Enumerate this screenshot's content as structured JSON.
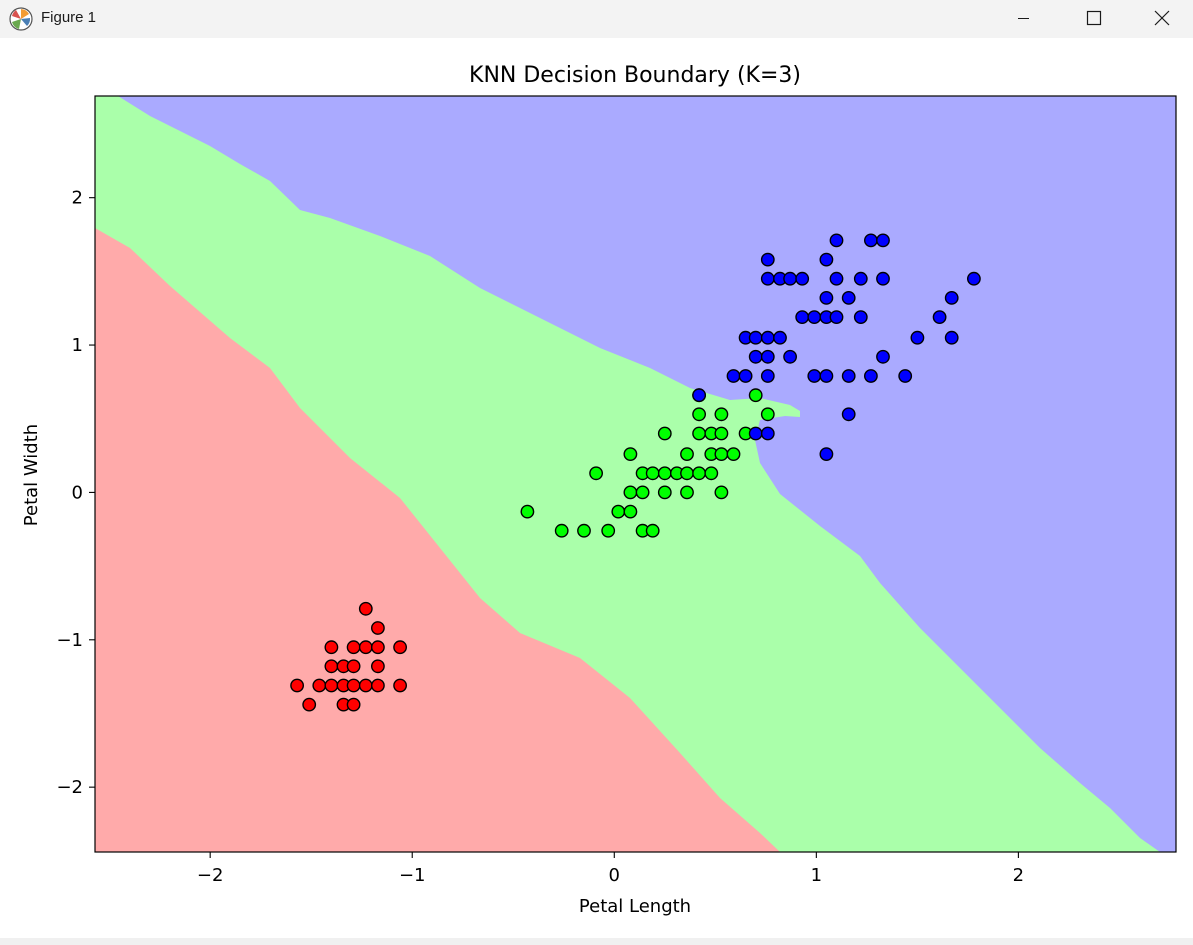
{
  "window": {
    "title": "Figure 1",
    "app_icon": "matplotlib-logo-icon",
    "controls": [
      "minimize-icon",
      "maximize-icon",
      "close-icon"
    ]
  },
  "chart_data": {
    "type": "scatter",
    "title": "KNN Decision Boundary (K=3)",
    "xlabel": "Petal Length",
    "ylabel": "Petal Width",
    "xlim": [
      -2.57,
      2.78
    ],
    "ylim": [
      -2.44,
      2.69
    ],
    "xticks": [
      -2,
      -1,
      0,
      1,
      2
    ],
    "yticks": [
      -2,
      -1,
      0,
      1,
      2
    ],
    "xtick_labels": [
      "−2",
      "−1",
      "0",
      "1",
      "2"
    ],
    "ytick_labels": [
      "−2",
      "−1",
      "0",
      "1",
      "2"
    ],
    "grid": false,
    "legend": "none",
    "background": "decision regions for 3 classes",
    "region_colors": {
      "red": "#ffaaaa",
      "green": "#aaffaa",
      "blue": "#aaaaff"
    },
    "series": [
      {
        "color": "#ff0000",
        "points": [
          [
            -1.23,
            -0.79
          ],
          [
            -1.17,
            -0.92
          ],
          [
            -1.4,
            -1.05
          ],
          [
            -1.29,
            -1.05
          ],
          [
            -1.23,
            -1.05
          ],
          [
            -1.17,
            -1.05
          ],
          [
            -1.06,
            -1.05
          ],
          [
            -1.4,
            -1.18
          ],
          [
            -1.34,
            -1.18
          ],
          [
            -1.29,
            -1.18
          ],
          [
            -1.17,
            -1.18
          ],
          [
            -1.57,
            -1.31
          ],
          [
            -1.46,
            -1.31
          ],
          [
            -1.4,
            -1.31
          ],
          [
            -1.34,
            -1.31
          ],
          [
            -1.29,
            -1.31
          ],
          [
            -1.23,
            -1.31
          ],
          [
            -1.17,
            -1.31
          ],
          [
            -1.06,
            -1.31
          ],
          [
            -1.51,
            -1.44
          ],
          [
            -1.34,
            -1.44
          ],
          [
            -1.29,
            -1.44
          ]
        ]
      },
      {
        "color": "#00ff00",
        "points": [
          [
            0.42,
            0.66
          ],
          [
            0.7,
            0.66
          ],
          [
            0.42,
            0.53
          ],
          [
            0.53,
            0.53
          ],
          [
            0.76,
            0.53
          ],
          [
            0.25,
            0.4
          ],
          [
            0.42,
            0.4
          ],
          [
            0.48,
            0.4
          ],
          [
            0.53,
            0.4
          ],
          [
            0.65,
            0.4
          ],
          [
            0.08,
            0.26
          ],
          [
            0.36,
            0.26
          ],
          [
            0.48,
            0.26
          ],
          [
            0.53,
            0.26
          ],
          [
            0.59,
            0.26
          ],
          [
            -0.09,
            0.13
          ],
          [
            0.14,
            0.13
          ],
          [
            0.19,
            0.13
          ],
          [
            0.25,
            0.13
          ],
          [
            0.31,
            0.13
          ],
          [
            0.36,
            0.13
          ],
          [
            0.42,
            0.13
          ],
          [
            0.48,
            0.13
          ],
          [
            0.08,
            0.0
          ],
          [
            0.14,
            0.0
          ],
          [
            0.25,
            0.0
          ],
          [
            0.36,
            0.0
          ],
          [
            0.53,
            0.0
          ],
          [
            -0.43,
            -0.13
          ],
          [
            0.02,
            -0.13
          ],
          [
            0.08,
            -0.13
          ],
          [
            -0.26,
            -0.26
          ],
          [
            -0.15,
            -0.26
          ],
          [
            -0.03,
            -0.26
          ],
          [
            0.14,
            -0.26
          ],
          [
            0.19,
            -0.26
          ]
        ]
      },
      {
        "color": "#0000ff",
        "points": [
          [
            1.1,
            1.71
          ],
          [
            1.27,
            1.71
          ],
          [
            1.33,
            1.71
          ],
          [
            0.76,
            1.58
          ],
          [
            1.05,
            1.58
          ],
          [
            0.76,
            1.45
          ],
          [
            0.82,
            1.45
          ],
          [
            0.87,
            1.45
          ],
          [
            0.93,
            1.45
          ],
          [
            1.1,
            1.45
          ],
          [
            1.22,
            1.45
          ],
          [
            1.33,
            1.45
          ],
          [
            1.78,
            1.45
          ],
          [
            1.05,
            1.32
          ],
          [
            1.16,
            1.32
          ],
          [
            1.67,
            1.32
          ],
          [
            0.93,
            1.19
          ],
          [
            0.99,
            1.19
          ],
          [
            1.05,
            1.19
          ],
          [
            1.1,
            1.19
          ],
          [
            1.22,
            1.19
          ],
          [
            1.61,
            1.19
          ],
          [
            0.65,
            1.05
          ],
          [
            0.7,
            1.05
          ],
          [
            0.76,
            1.05
          ],
          [
            0.82,
            1.05
          ],
          [
            1.5,
            1.05
          ],
          [
            1.67,
            1.05
          ],
          [
            0.7,
            0.92
          ],
          [
            0.76,
            0.92
          ],
          [
            0.87,
            0.92
          ],
          [
            1.33,
            0.92
          ],
          [
            0.59,
            0.79
          ],
          [
            0.65,
            0.79
          ],
          [
            0.76,
            0.79
          ],
          [
            0.99,
            0.79
          ],
          [
            1.05,
            0.79
          ],
          [
            1.16,
            0.79
          ],
          [
            1.27,
            0.79
          ],
          [
            1.44,
            0.79
          ],
          [
            0.42,
            0.66
          ],
          [
            1.16,
            0.53
          ],
          [
            0.7,
            0.4
          ],
          [
            0.76,
            0.4
          ],
          [
            1.05,
            0.26
          ]
        ]
      }
    ]
  }
}
